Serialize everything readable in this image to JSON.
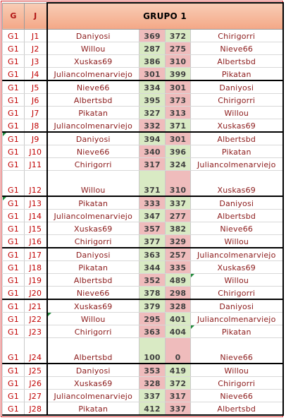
{
  "header": {
    "g_label": "G",
    "j_label": "J",
    "title": "GRUPO 1"
  },
  "colors": {
    "accent": "#c00000",
    "border": "#d42a2a",
    "win": "#d9eac4",
    "lose": "#efbcbc",
    "marker": "#1f8a3a"
  },
  "rows": [
    {
      "g": "G1",
      "j": "J1",
      "p1": "Daniyosi",
      "s1": "369",
      "s2": "372",
      "p2": "Chirigorri"
    },
    {
      "g": "G1",
      "j": "J2",
      "p1": "Willou",
      "s1": "287",
      "s2": "275",
      "p2": "Nieve66"
    },
    {
      "g": "G1",
      "j": "J3",
      "p1": "Xuskas69",
      "s1": "386",
      "s2": "310",
      "p2": "Albertsbd"
    },
    {
      "g": "G1",
      "j": "J4",
      "p1": "Juliancolmenarviejo",
      "s1": "301",
      "s2": "399",
      "p2": "Pikatan"
    },
    {
      "g": "G1",
      "j": "J5",
      "p1": "Nieve66",
      "s1": "334",
      "s2": "301",
      "p2": "Daniyosi"
    },
    {
      "g": "G1",
      "j": "J6",
      "p1": "Albertsbd",
      "s1": "395",
      "s2": "373",
      "p2": "Chirigorri"
    },
    {
      "g": "G1",
      "j": "J7",
      "p1": "Pikatan",
      "s1": "327",
      "s2": "313",
      "p2": "Willou"
    },
    {
      "g": "G1",
      "j": "J8",
      "p1": "Juliancolmenarviejo",
      "s1": "332",
      "s2": "371",
      "p2": "Xuskas69"
    },
    {
      "g": "G1",
      "j": "J9",
      "p1": "Daniyosi",
      "s1": "394",
      "s2": "301",
      "p2": "Albertsbd"
    },
    {
      "g": "G1",
      "j": "J10",
      "p1": "Nieve66",
      "s1": "340",
      "s2": "396",
      "p2": "Pikatan"
    },
    {
      "g": "G1",
      "j": "J11",
      "p1": "Chirigorri",
      "s1": "317",
      "s2": "324",
      "p2": "Juliancolmenarviejo"
    },
    {
      "g": "G1",
      "j": "J12",
      "p1": "Willou",
      "s1": "371",
      "s2": "310",
      "p2": "Xuskas69"
    },
    {
      "g": "G1",
      "j": "J13",
      "p1": "Pikatan",
      "s1": "333",
      "s2": "337",
      "p2": "Daniyosi"
    },
    {
      "g": "G1",
      "j": "J14",
      "p1": "Juliancolmenarviejo",
      "s1": "347",
      "s2": "277",
      "p2": "Albertsbd"
    },
    {
      "g": "G1",
      "j": "J15",
      "p1": "Xuskas69",
      "s1": "357",
      "s2": "382",
      "p2": "Nieve66"
    },
    {
      "g": "G1",
      "j": "J16",
      "p1": "Chirigorri",
      "s1": "377",
      "s2": "329",
      "p2": "Willou"
    },
    {
      "g": "G1",
      "j": "J17",
      "p1": "Daniyosi",
      "s1": "363",
      "s2": "257",
      "p2": "Juliancolmenarviejo"
    },
    {
      "g": "G1",
      "j": "J18",
      "p1": "Pikatan",
      "s1": "344",
      "s2": "335",
      "p2": "Xuskas69"
    },
    {
      "g": "G1",
      "j": "J19",
      "p1": "Albertsbd",
      "s1": "352",
      "s2": "489",
      "p2": "Willou"
    },
    {
      "g": "G1",
      "j": "J20",
      "p1": "Nieve66",
      "s1": "378",
      "s2": "298",
      "p2": "Chirigorri"
    },
    {
      "g": "G1",
      "j": "J21",
      "p1": "Xuskas69",
      "s1": "379",
      "s2": "328",
      "p2": "Daniyosi"
    },
    {
      "g": "G1",
      "j": "J22",
      "p1": "Willou",
      "s1": "295",
      "s2": "401",
      "p2": "Juliancolmenarviejo"
    },
    {
      "g": "G1",
      "j": "J23",
      "p1": "Chirigorri",
      "s1": "363",
      "s2": "404",
      "p2": "Pikatan"
    },
    {
      "g": "G1",
      "j": "J24",
      "p1": "Albertsbd",
      "s1": "100",
      "s2": "0",
      "p2": "Nieve66"
    },
    {
      "g": "G1",
      "j": "J25",
      "p1": "Daniyosi",
      "s1": "353",
      "s2": "419",
      "p2": "Willou"
    },
    {
      "g": "G1",
      "j": "J26",
      "p1": "Xuskas69",
      "s1": "328",
      "s2": "372",
      "p2": "Chirigorri"
    },
    {
      "g": "G1",
      "j": "J27",
      "p1": "Juliancolmenarviejo",
      "s1": "337",
      "s2": "317",
      "p2": "Nieve66"
    },
    {
      "g": "G1",
      "j": "J28",
      "p1": "Pikatan",
      "s1": "412",
      "s2": "337",
      "p2": "Albertsbd"
    }
  ]
}
